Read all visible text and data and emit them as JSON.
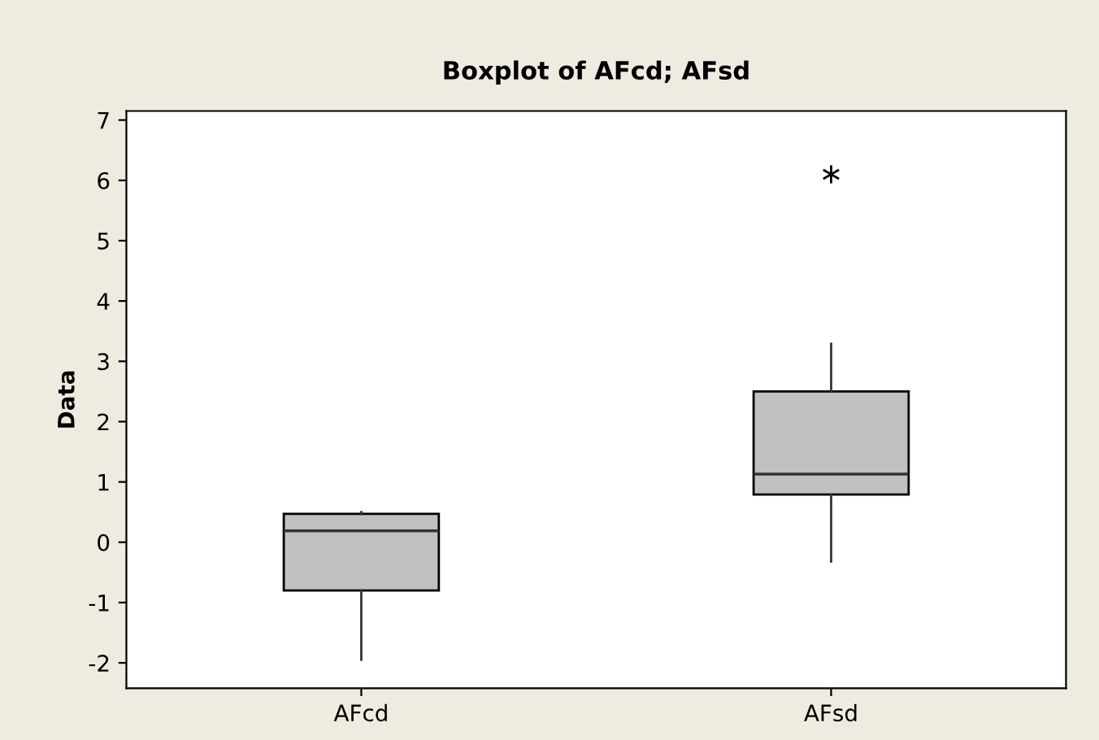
{
  "chart_data": {
    "type": "box",
    "title": "Boxplot of AFcd; AFsd",
    "ylabel": "Data",
    "categories": [
      "AFcd",
      "AFsd"
    ],
    "boxes": [
      {
        "low": -1.95,
        "q1": -0.8,
        "median": 0.19,
        "q3": 0.47,
        "high": 0.5
      },
      {
        "low": -0.32,
        "q1": 0.79,
        "median": 1.13,
        "q3": 2.5,
        "high": 3.29,
        "outliers": [
          6.1
        ]
      }
    ],
    "color": "#c0c0c0",
    "ylim": [
      -2.42,
      7.15
    ],
    "yticks": [
      -2,
      -1,
      0,
      1,
      2,
      3,
      4,
      5,
      6,
      7
    ],
    "grid": false,
    "legend": false,
    "marker": "star"
  }
}
